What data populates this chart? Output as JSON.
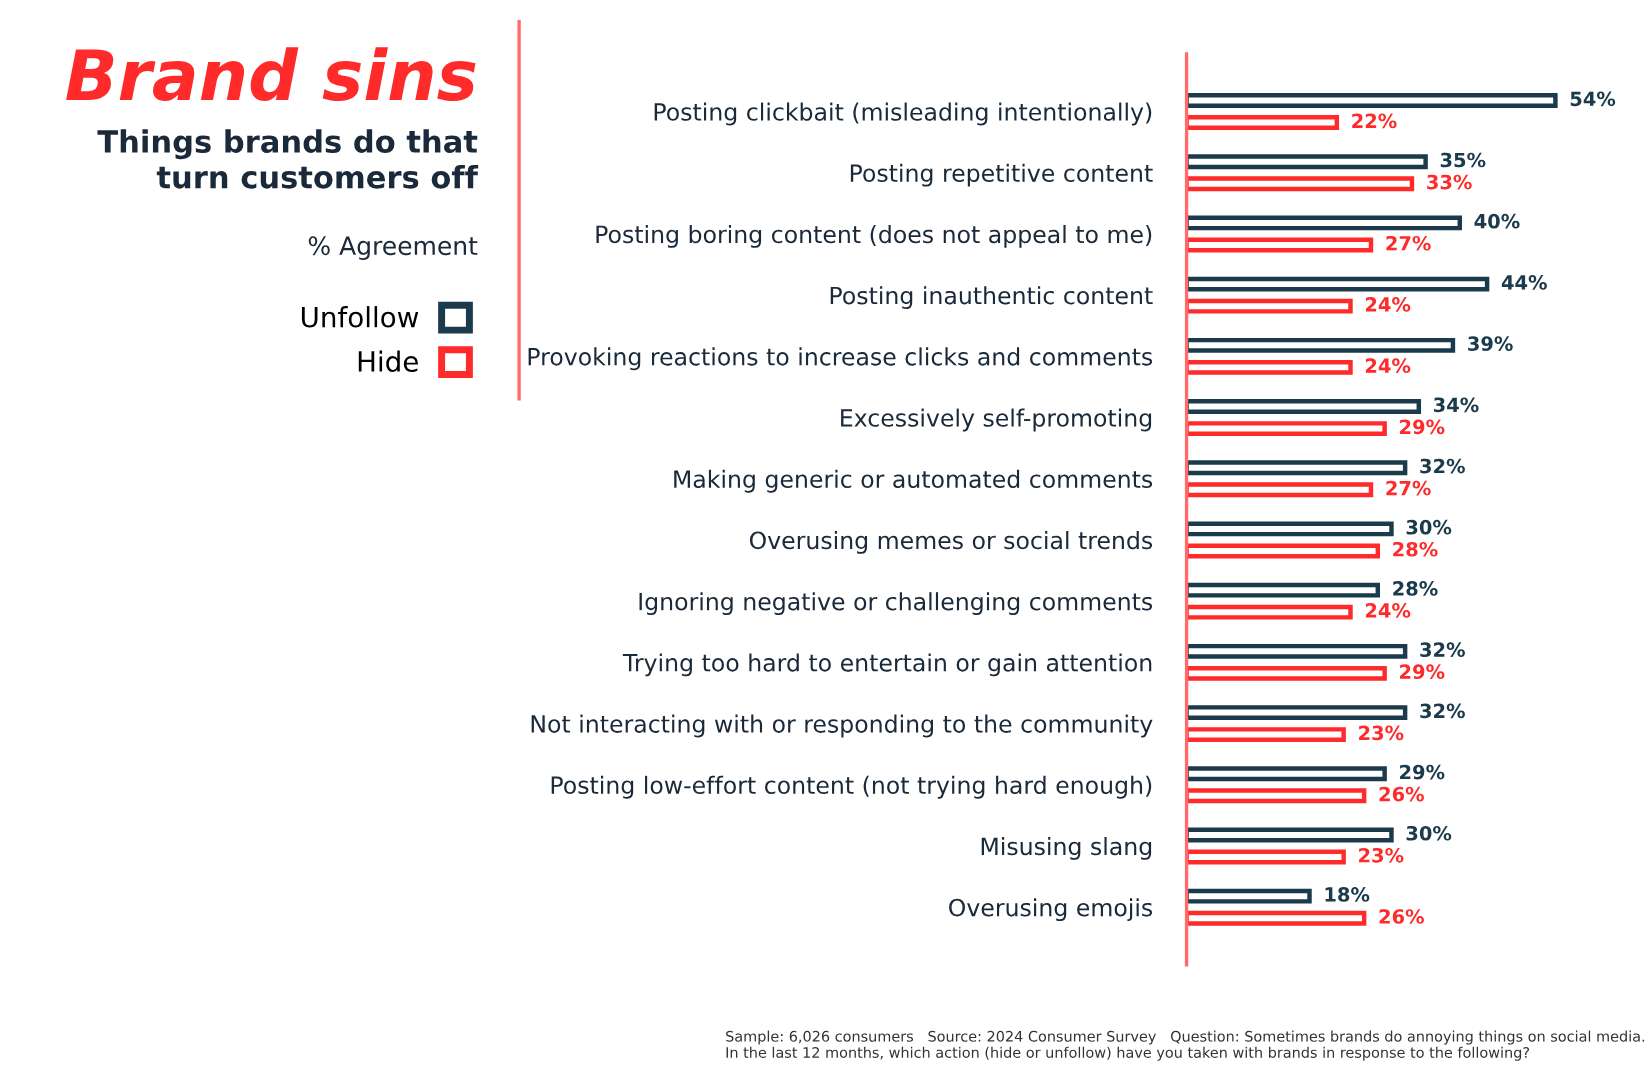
{
  "chart_data": {
    "type": "bar",
    "orientation": "horizontal",
    "title": "Brand sins",
    "subtitle": "Things brands do that\nturn customers off",
    "categories": [
      "Posting clickbait (misleading intentionally)",
      "Posting repetitive content",
      "Posting boring content (does not appeal to me)",
      "Posting inauthentic content",
      "Provoking reactions to increase clicks and comments",
      "Excessively self-promoting",
      "Making generic or automated comments",
      "Overusing memes or social trends",
      "Ignoring negative or challenging comments",
      "Trying too hard to entertain or gain attention",
      "Not interacting with or responding to the community",
      "Posting low-effort content (not trying hard enough)",
      "Misusing slang",
      "Overusing emojis"
    ],
    "series": [
      {
        "name": "Unfollow",
        "color": "#1b3a4b",
        "values": [
          54,
          35,
          40,
          44,
          39,
          34,
          32,
          30,
          28,
          32,
          32,
          29,
          30,
          18
        ],
        "value_labels": [
          "54%",
          "35%",
          "40%",
          "44%",
          "39%",
          "34%",
          "32%",
          "30%",
          "28%",
          "32%",
          "32%",
          "29%",
          "30%",
          "18%"
        ]
      },
      {
        "name": "Hide",
        "color": "#ff2a2a",
        "values": [
          22,
          33,
          27,
          24,
          24,
          29,
          27,
          28,
          24,
          29,
          23,
          26,
          23,
          26
        ],
        "value_labels": [
          "22%",
          "33%",
          "27%",
          "24%",
          "24%",
          "29%",
          "27%",
          "28%",
          "24%",
          "29%",
          "23%",
          "26%",
          "23%",
          "26%"
        ]
      }
    ],
    "annotations": [
      "% Agreement",
      "Sample: 6,026 consumers   Source: 2024 Consumer Survey   Question: Sometimes brands do annoying things on social media. In the last 12 months, which action (hide or unfollow) have you taken with brands in response to the following?"
    ],
    "legend": "left",
    "tick_labels": "y",
    "grid": false
  }
}
